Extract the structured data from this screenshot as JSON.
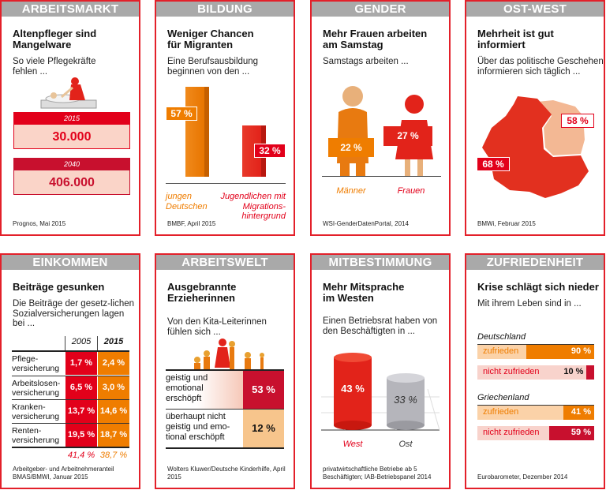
{
  "arbeitsmarkt": {
    "header": "ARBEITSMARKT",
    "title": "Altenpfleger sind Mangelware",
    "subtitle": "So viele Pflegekräfte fehlen ...",
    "rows": [
      {
        "year": "2015",
        "value": "30.000"
      },
      {
        "year": "2040",
        "value": "406.000"
      }
    ],
    "source": "Prognos, Mai 2015"
  },
  "bildung": {
    "header": "BILDUNG",
    "title": "Weniger Chancen für Migranten",
    "subtitle": "Eine Berufsausbildung beginnen von den ...",
    "bars": [
      {
        "label": "jungen Deutschen",
        "value": "57 %",
        "pct": 57,
        "color": "#ef7d00"
      },
      {
        "label": "Jugendlichen mit Migrations-hintergrund",
        "value": "32 %",
        "pct": 32,
        "color": "#e2231a"
      }
    ],
    "source": "BMBF, April 2015"
  },
  "gender": {
    "header": "GENDER",
    "title": "Mehr Frauen arbeiten am Samstag",
    "subtitle": "Samstags arbeiten ...",
    "groups": [
      {
        "label": "Männer",
        "value": "22 %"
      },
      {
        "label": "Frauen",
        "value": "27 %"
      }
    ],
    "source": "WSI-GenderDatenPortal, 2014"
  },
  "ostwest": {
    "header": "OST-WEST",
    "title": "Mehrheit ist gut informiert",
    "subtitle": "Über das politische Geschehen informieren sich täglich ...",
    "east": "58 %",
    "west": "68 %",
    "source": "BMWi, Februar 2015"
  },
  "einkommen": {
    "header": "EINKOMMEN",
    "title": "Beiträge gesunken",
    "subtitle": "Die Beiträge der gesetz-lichen Sozialversicherungen lagen bei ...",
    "columns": [
      "2005",
      "2015"
    ],
    "rows": [
      {
        "label": "Pflege-versicherung",
        "v2005": "1,7 %",
        "v2015": "2,4 %"
      },
      {
        "label": "Arbeitslosen-versicherung",
        "v2005": "6,5 %",
        "v2015": "3,0 %"
      },
      {
        "label": "Kranken-versicherung",
        "v2005": "13,7 %",
        "v2015": "14,6 %"
      },
      {
        "label": "Renten-versicherung",
        "v2005": "19,5 %",
        "v2015": "18,7 %"
      }
    ],
    "totals": [
      "41,4 %",
      "38,7 %"
    ],
    "source": "Arbeitgeber- und Arbeitnehmeranteil BMAS/BMWI, Januar 2015"
  },
  "arbeitswelt": {
    "header": "ARBEITSWELT",
    "title": "Ausgebrannte Erzieherinnen",
    "subtitle": "Von den Kita-Leiterinnen fühlen sich ...",
    "rows": [
      {
        "label": "geistig und emotional erschöpft",
        "value": "53 %"
      },
      {
        "label": "überhaupt nicht geistig und emo-tional erschöpft",
        "value": "12 %"
      }
    ],
    "source": "Wolters Kluwer/Deutsche Kinderhilfe, April 2015"
  },
  "mitbestimmung": {
    "header": "MITBESTIMMUNG",
    "title": "Mehr Mitsprache im Westen",
    "subtitle": "Einen Betriebsrat haben von den Beschäftigten in ...",
    "bars": [
      {
        "label": "West",
        "value": "43 %",
        "pct": 43
      },
      {
        "label": "Ost",
        "value": "33 %",
        "pct": 33
      }
    ],
    "source": "privatwirtschaftliche Betriebe ab 5 Beschäftigten; IAB-Betriebspanel 2014"
  },
  "zufriedenheit": {
    "header": "ZUFRIEDENHEIT",
    "title": "Krise schlägt sich nieder",
    "subtitle": "Mit ihrem Leben sind in ...",
    "groups": [
      {
        "country": "Deutschland",
        "bars": [
          {
            "label": "zufrieden",
            "value": "90 %",
            "pct": 90
          },
          {
            "label": "nicht zufrieden",
            "value": "10 %",
            "pct": 10
          }
        ]
      },
      {
        "country": "Griechenland",
        "bars": [
          {
            "label": "zufrieden",
            "value": "41 %",
            "pct": 41
          },
          {
            "label": "nicht zufrieden",
            "value": "59 %",
            "pct": 59
          }
        ]
      }
    ],
    "source": "Eurobarometer, Dezember 2014"
  },
  "colors": {
    "frame": "#e3202a",
    "header_bg": "#a9a9a9",
    "red": "#e2001a",
    "dark_red": "#c8102e",
    "orange": "#ef7d00"
  }
}
